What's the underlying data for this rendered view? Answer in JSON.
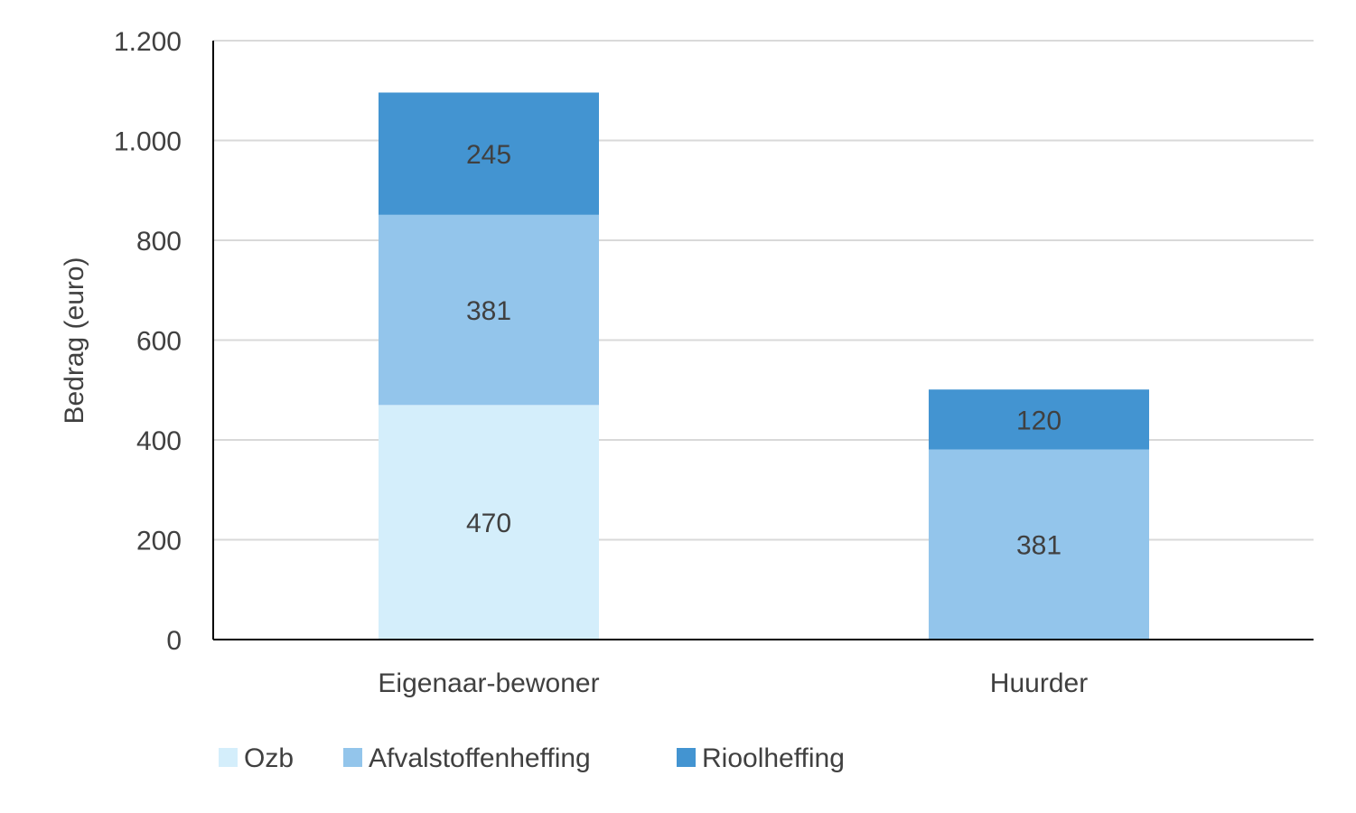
{
  "chart_data": {
    "type": "bar",
    "stacked": true,
    "categories": [
      "Eigenaar-bewoner",
      "Huurder"
    ],
    "series": [
      {
        "name": "Ozb",
        "values": [
          470,
          0
        ],
        "color": "#D4EEFB"
      },
      {
        "name": "Afvalstoffenheffing",
        "values": [
          381,
          381
        ],
        "color": "#93C5EB"
      },
      {
        "name": "Rioolheffing",
        "values": [
          245,
          120
        ],
        "color": "#4394D1"
      }
    ],
    "data_labels": [
      [
        "470",
        ""
      ],
      [
        "381",
        "381"
      ],
      [
        "245",
        "120"
      ]
    ],
    "title": "",
    "xlabel": "",
    "ylabel": "Bedrag (euro)",
    "ylim": [
      0,
      1200
    ],
    "yticks": [
      0,
      200,
      400,
      600,
      800,
      1000,
      1200
    ],
    "ytick_labels": [
      "0",
      "200",
      "400",
      "600",
      "800",
      "1.000",
      "1.200"
    ],
    "grid": true,
    "legend_position": "bottom-left"
  }
}
